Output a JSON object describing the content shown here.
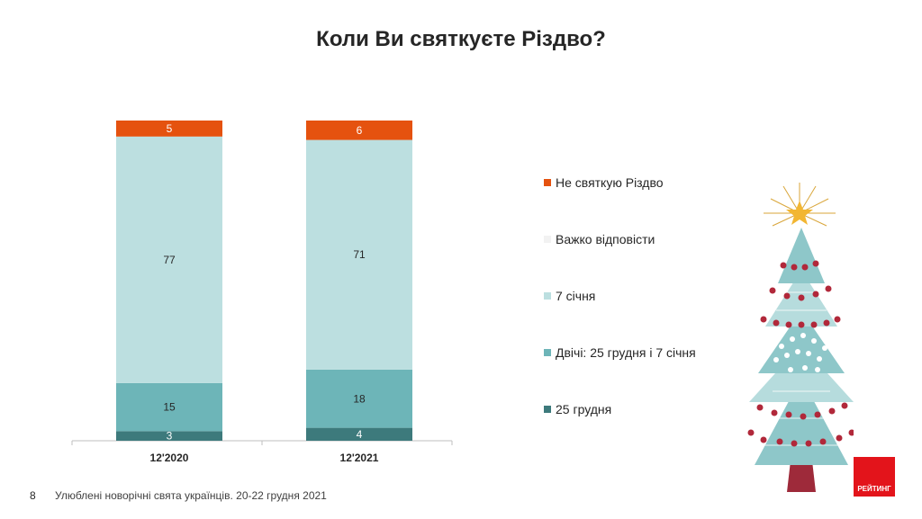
{
  "title": "Коли Ви святкуєте Різдво?",
  "chart_data": {
    "type": "bar",
    "stacked": true,
    "categories": [
      "12'2020",
      "12'2021"
    ],
    "series": [
      {
        "name": "25 грудня",
        "values": [
          3,
          4
        ],
        "color": "#3d7a7c",
        "label_color": "#ffffff"
      },
      {
        "name": "Двічі: 25 грудня і 7 січня",
        "values": [
          15,
          18
        ],
        "color": "#6db5b8",
        "label_color": "#262626"
      },
      {
        "name": "7 січня",
        "values": [
          77,
          71
        ],
        "color": "#bcdfe0",
        "label_color": "#262626"
      },
      {
        "name": "Важко відповісти",
        "values": [
          0,
          0
        ],
        "color": "#f2f2f2",
        "label_color": "#262626"
      },
      {
        "name": "Не святкую Різдво",
        "values": [
          5,
          6
        ],
        "color": "#e5520f",
        "label_color": "#ffffff"
      }
    ],
    "data_labels": [
      {
        "series": 0,
        "labels": [
          "3",
          "4"
        ]
      },
      {
        "series": 1,
        "labels": [
          "15",
          "18"
        ]
      },
      {
        "series": 2,
        "labels": [
          "77",
          "71"
        ]
      },
      {
        "series": 4,
        "labels": [
          "5",
          "6"
        ]
      }
    ],
    "legend_order": [
      4,
      3,
      2,
      1,
      0
    ],
    "legend_placement": "right",
    "grid": false
  },
  "legend": [
    {
      "label": "Не святкую Різдво",
      "color": "#e5520f"
    },
    {
      "label": "Важко відповісти",
      "color": "#f2f2f2"
    },
    {
      "label": "7 січня",
      "color": "#bcdfe0"
    },
    {
      "label": "Двічі: 25 грудня і 7 січня",
      "color": "#6db5b8"
    },
    {
      "label": "25 грудня",
      "color": "#3d7a7c"
    }
  ],
  "footer": {
    "page_number": "8",
    "text": "Улюблені новорічні свята українців. 20-22 грудня 2021"
  },
  "logo": {
    "text": "РЕЙТИНГ",
    "color": "#e3141b"
  }
}
